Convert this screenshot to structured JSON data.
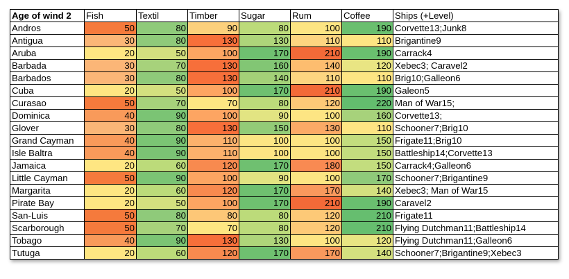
{
  "table": {
    "headers": [
      "Age of wind 2",
      "Fish",
      "Textil",
      "Timber",
      "Sugar",
      "Rum",
      "Coffee",
      "Ships (+Level)"
    ],
    "rows": [
      {
        "name": "Andros",
        "values": [
          50,
          80,
          90,
          80,
          100,
          190
        ],
        "colors": [
          "#f57a3c",
          "#8fca7a",
          "#fcd07c",
          "#bcdb7a",
          "#fde583",
          "#6abf6f"
        ],
        "ships": "Corvette13;Junk8"
      },
      {
        "name": "Antigua",
        "values": [
          30,
          80,
          130,
          130,
          110,
          110
        ],
        "colors": [
          "#fbb677",
          "#8fca7a",
          "#f76f3a",
          "#aed57a",
          "#fdd580",
          "#fde583"
        ],
        "ships": "Brigantine9"
      },
      {
        "name": "Aruba",
        "values": [
          20,
          50,
          100,
          170,
          210,
          190
        ],
        "colors": [
          "#fee682",
          "#d4e07f",
          "#fda562",
          "#6fc070",
          "#f36a38",
          "#6abf6f"
        ],
        "ships": "Carrack4"
      },
      {
        "name": "Barbada",
        "values": [
          30,
          70,
          130,
          160,
          140,
          120
        ],
        "colors": [
          "#fbb677",
          "#a7d27b",
          "#f76f3a",
          "#82c674",
          "#fdbd6f",
          "#e9e583"
        ],
        "ships": "Xebec3; Caravel2"
      },
      {
        "name": "Barbados",
        "values": [
          30,
          80,
          130,
          140,
          110,
          110
        ],
        "colors": [
          "#fbb677",
          "#8fca7a",
          "#f76f3a",
          "#a3d178",
          "#fdd580",
          "#fde583"
        ],
        "ships": "Brig10;Galleon6"
      },
      {
        "name": "Cuba",
        "values": [
          20,
          50,
          100,
          170,
          210,
          190
        ],
        "colors": [
          "#fee682",
          "#d4e07f",
          "#fda562",
          "#6fc070",
          "#f36a38",
          "#6abf6f"
        ],
        "ships": "Galeon5"
      },
      {
        "name": "Curasao",
        "values": [
          50,
          70,
          70,
          80,
          120,
          220
        ],
        "colors": [
          "#f57a3c",
          "#a7d27b",
          "#fee682",
          "#bcdb7a",
          "#fdc977",
          "#63bd6e"
        ],
        "ships": "Man of War15;"
      },
      {
        "name": "Dominica",
        "values": [
          40,
          90,
          100,
          90,
          100,
          160
        ],
        "colors": [
          "#f99a5a",
          "#7bc474",
          "#fda562",
          "#e2e482",
          "#fde583",
          "#a7d27b"
        ],
        "ships": "Corvette13;"
      },
      {
        "name": "Glover",
        "values": [
          30,
          80,
          130,
          150,
          130,
          110
        ],
        "colors": [
          "#fbb677",
          "#8fca7a",
          "#f76f3a",
          "#93cb77",
          "#fbaa66",
          "#fde583"
        ],
        "ships": "Schooner7;Brig10"
      },
      {
        "name": "Grand Cayman",
        "values": [
          40,
          90,
          110,
          100,
          100,
          150
        ],
        "colors": [
          "#f99a5a",
          "#7bc474",
          "#fcb16c",
          "#fde583",
          "#fde583",
          "#c3dd7e"
        ],
        "ships": "Frigate11;Brig10"
      },
      {
        "name": "Isle Baltra",
        "values": [
          40,
          90,
          110,
          100,
          100,
          150
        ],
        "colors": [
          "#f99a5a",
          "#7bc474",
          "#fcb16c",
          "#fde583",
          "#fde583",
          "#c3dd7e"
        ],
        "ships": "Battleship14;Corvette13"
      },
      {
        "name": "Jamaica",
        "values": [
          20,
          60,
          120,
          170,
          180,
          150
        ],
        "colors": [
          "#fee682",
          "#bcdb7a",
          "#f88a4f",
          "#6fc070",
          "#f98a52",
          "#c3dd7e"
        ],
        "ships": "Carrack4;Galleon6"
      },
      {
        "name": "Little Cayman",
        "values": [
          50,
          90,
          100,
          90,
          100,
          170
        ],
        "colors": [
          "#f57a3c",
          "#7bc474",
          "#fda562",
          "#e2e482",
          "#fde583",
          "#8fca7a"
        ],
        "ships": "Schooner7;Brigantine9"
      },
      {
        "name": "Margarita",
        "values": [
          20,
          60,
          120,
          170,
          170,
          140
        ],
        "colors": [
          "#fee682",
          "#bcdb7a",
          "#f88a4f",
          "#6fc070",
          "#f9995d",
          "#d4e07f"
        ],
        "ships": "Xebec3; Man of War15"
      },
      {
        "name": "Pirate Bay",
        "values": [
          20,
          50,
          100,
          170,
          210,
          190
        ],
        "colors": [
          "#fee682",
          "#d4e07f",
          "#fda562",
          "#6fc070",
          "#f36a38",
          "#6abf6f"
        ],
        "ships": "Caravel2"
      },
      {
        "name": "San-Luis",
        "values": [
          50,
          80,
          80,
          80,
          120,
          210
        ],
        "colors": [
          "#f57a3c",
          "#8fca7a",
          "#fdc777",
          "#bcdb7a",
          "#fdc977",
          "#66be6f"
        ],
        "ships": "Frigate11"
      },
      {
        "name": "Scarborough",
        "values": [
          50,
          70,
          70,
          80,
          120,
          210
        ],
        "colors": [
          "#f57a3c",
          "#a7d27b",
          "#fee682",
          "#bcdb7a",
          "#fdc977",
          "#66be6f"
        ],
        "ships": "Flying Dutchman11;Battleship14"
      },
      {
        "name": "Tobago",
        "values": [
          40,
          90,
          130,
          130,
          100,
          120
        ],
        "colors": [
          "#f99a5a",
          "#7bc474",
          "#f76f3a",
          "#aed57a",
          "#fde583",
          "#e9e583"
        ],
        "ships": "Flying Dutchman11;Galleon6"
      },
      {
        "name": "Tutuga",
        "values": [
          20,
          60,
          120,
          170,
          170,
          140
        ],
        "colors": [
          "#fee682",
          "#bcdb7a",
          "#f88a4f",
          "#6fc070",
          "#f9995d",
          "#d4e07f"
        ],
        "ships": "Schooner7;Brigantine9;Xebec3"
      }
    ]
  }
}
